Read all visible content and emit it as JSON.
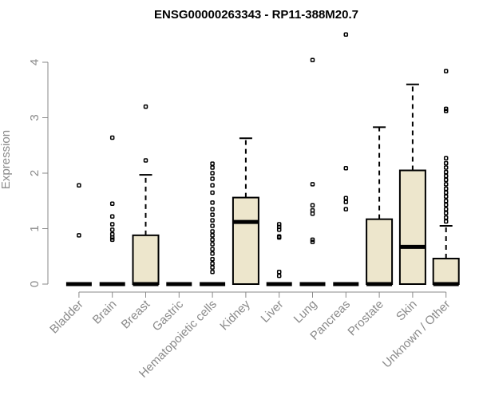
{
  "chart_data": {
    "type": "box",
    "title": "ENSG00000263343 - RP11-388M20.7",
    "xlabel": "",
    "ylabel": "Expression",
    "ylim": [
      0,
      4.5
    ],
    "yticks": [
      "0",
      "1",
      "2",
      "3",
      "4"
    ],
    "grid": false,
    "legend": "none",
    "colors": {
      "box_fill": "#ede6cc",
      "stroke": "#000000",
      "axis": "#8a8a8a"
    },
    "categories": [
      "Bladder",
      "Brain",
      "Breast",
      "Gastric",
      "Hematopoietic cells",
      "Kidney",
      "Liver",
      "Lung",
      "Pancreas",
      "Prostate",
      "Skin",
      "Unknown / Other"
    ],
    "boxes": [
      {
        "q1": 0,
        "median": 0,
        "q3": 0,
        "whisker_low": 0,
        "whisker_high": 0,
        "outliers": [
          1.78,
          0.88
        ]
      },
      {
        "q1": 0,
        "median": 0,
        "q3": 0,
        "whisker_low": 0,
        "whisker_high": 0,
        "outliers": [
          2.64,
          1.45,
          1.22,
          1.08,
          0.98,
          0.9,
          0.84,
          0.8
        ]
      },
      {
        "q1": 0,
        "median": 0,
        "q3": 0.88,
        "whisker_low": 0,
        "whisker_high": 1.97,
        "outliers": [
          3.2,
          2.23
        ]
      },
      {
        "q1": 0,
        "median": 0,
        "q3": 0,
        "whisker_low": 0,
        "whisker_high": 0,
        "outliers": []
      },
      {
        "q1": 0,
        "median": 0,
        "q3": 0,
        "whisker_low": 0,
        "whisker_high": 0,
        "outliers": [
          2.17,
          2.1,
          2.0,
          1.9,
          1.78,
          1.65,
          1.47,
          1.35,
          1.25,
          1.15,
          1.05,
          0.95,
          0.88,
          0.8,
          0.72,
          0.63,
          0.55,
          0.45,
          0.37,
          0.3,
          0.22
        ]
      },
      {
        "q1": 0,
        "median": 1.12,
        "q3": 1.56,
        "whisker_low": 0,
        "whisker_high": 2.63,
        "outliers": []
      },
      {
        "q1": 0,
        "median": 0,
        "q3": 0,
        "whisker_low": 0,
        "whisker_high": 0,
        "outliers": [
          1.08,
          1.03,
          0.98,
          0.86,
          0.84,
          0.22,
          0.15
        ]
      },
      {
        "q1": 0,
        "median": 0,
        "q3": 0,
        "whisker_low": 0,
        "whisker_high": 0,
        "outliers": [
          4.04,
          1.8,
          1.42,
          1.33,
          1.27,
          0.8,
          0.76
        ]
      },
      {
        "q1": 0,
        "median": 0,
        "q3": 0,
        "whisker_low": 0,
        "whisker_high": 0,
        "outliers": [
          4.5,
          2.09,
          1.55,
          1.48,
          1.35
        ]
      },
      {
        "q1": 0,
        "median": 0,
        "q3": 1.17,
        "whisker_low": 0,
        "whisker_high": 2.83,
        "outliers": []
      },
      {
        "q1": 0,
        "median": 0.67,
        "q3": 2.05,
        "whisker_low": 0,
        "whisker_high": 3.6,
        "outliers": []
      },
      {
        "q1": 0,
        "median": 0,
        "q3": 0.46,
        "whisker_low": 0,
        "whisker_high": 1.05,
        "outliers": [
          3.84,
          3.16,
          3.12,
          2.27,
          2.18,
          2.1,
          2.02,
          1.95,
          1.88,
          1.8,
          1.72,
          1.65,
          1.58,
          1.5,
          1.43,
          1.35,
          1.28,
          1.2,
          1.13
        ]
      }
    ]
  }
}
